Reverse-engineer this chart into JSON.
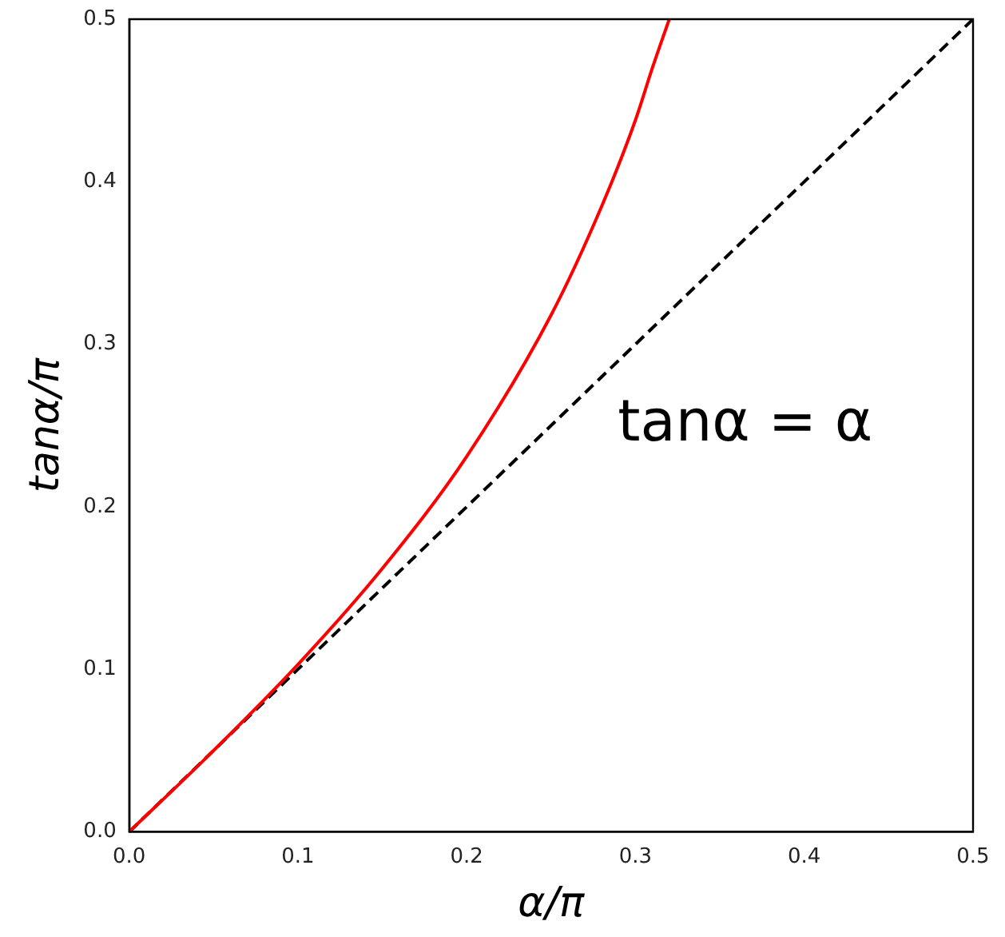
{
  "chart_data": {
    "type": "line",
    "xlabel": "α/π",
    "ylabel": "tanα/π",
    "xlim": [
      0,
      0.5
    ],
    "ylim": [
      0,
      0.5
    ],
    "xticks": [
      {
        "value": 0,
        "label": "0.0"
      },
      0.1,
      0.2,
      0.3,
      0.4,
      0.5
    ],
    "yticks": [
      {
        "value": 0,
        "label": "0.0"
      },
      0.1,
      0.2,
      0.3,
      0.4,
      0.5
    ],
    "grid": false,
    "legend": false,
    "marker": "none",
    "series": [
      {
        "color": "#ff0000",
        "line_style": "solid",
        "x": [
          0,
          0.05,
          0.1,
          0.15,
          0.2,
          0.25,
          0.28,
          0.3,
          0.31,
          0.32
        ],
        "values": [
          0,
          0.05,
          0.103,
          0.162,
          0.231,
          0.318,
          0.385,
          0.438,
          0.47,
          0.5
        ]
      },
      {
        "color": "#000000",
        "line_style": "dashed",
        "x": [
          0,
          0.5
        ],
        "values": [
          0,
          0.5
        ]
      }
    ],
    "annotations": [
      "tanα = α"
    ]
  }
}
